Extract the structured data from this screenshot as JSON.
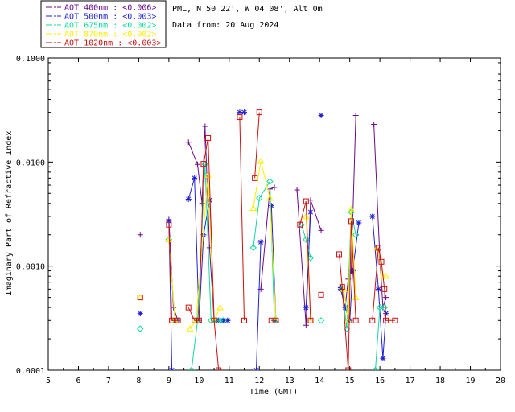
{
  "chart_data": {
    "type": "scatter",
    "header": {
      "site": "PML, N 50 22', W 04 08', Alt 0m",
      "date": "Data from: 20 Aug 2024"
    },
    "xlabel": "Time (GMT)",
    "ylabel": "Imaginary Part of Refractive Index",
    "xlim": [
      5,
      20
    ],
    "ylim": [
      0.0001,
      0.1
    ],
    "yscale": "log",
    "x_ticks": [
      5,
      6,
      7,
      8,
      9,
      10,
      11,
      12,
      13,
      14,
      15,
      16,
      17,
      18,
      19,
      20
    ],
    "y_ticks": [
      {
        "value": 0.0001,
        "label": "0.0001"
      },
      {
        "value": 0.001,
        "label": "0.0010"
      },
      {
        "value": 0.01,
        "label": "0.0100"
      },
      {
        "value": 0.1,
        "label": "0.1000"
      }
    ],
    "legend_position": "top-left-outside",
    "series": [
      {
        "name": "AOT  400nm : <0.006>",
        "color": "#6a0a8c",
        "marker": "plus",
        "segments": [
          [
            [
              8.05,
              0.002
            ]
          ],
          [
            [
              9.0,
              0.0028
            ],
            [
              9.15,
              0.0004
            ],
            [
              9.3,
              0.0003
            ]
          ],
          [
            [
              9.65,
              0.0155
            ],
            [
              9.95,
              0.0095
            ],
            [
              10.1,
              0.004
            ],
            [
              10.2,
              0.022
            ],
            [
              10.35,
              0.0015
            ],
            [
              10.5,
              0.0003
            ],
            [
              10.65,
              0.0003
            ],
            [
              10.8,
              0.0003
            ],
            [
              10.95,
              0.0003
            ]
          ],
          [
            [
              12.05,
              0.0006
            ],
            [
              12.35,
              0.0055
            ],
            [
              12.5,
              0.0057
            ]
          ],
          [
            [
              13.25,
              0.0054
            ],
            [
              13.55,
              0.00027
            ],
            [
              13.7,
              0.0043
            ],
            [
              14.05,
              0.0022
            ]
          ],
          [
            [
              14.7,
              0.00062
            ],
            [
              14.85,
              0.0004
            ],
            [
              14.95,
              0.00075
            ],
            [
              15.05,
              0.0009
            ],
            [
              15.2,
              0.028
            ]
          ],
          [
            [
              15.8,
              0.023
            ],
            [
              16.0,
              0.0012
            ],
            [
              16.1,
              0.0004
            ],
            [
              16.2,
              0.0005
            ]
          ]
        ]
      },
      {
        "name": "AOT  500nm : <0.003>",
        "color": "#1f1fd6",
        "marker": "star",
        "segments": [
          [
            [
              8.05,
              0.00035
            ]
          ],
          [
            [
              9.0,
              0.0027
            ],
            [
              9.1,
              0.0001
            ]
          ],
          [
            [
              9.65,
              0.0044
            ],
            [
              9.85,
              0.007
            ],
            [
              10.0,
              0.0003
            ],
            [
              10.15,
              0.002
            ],
            [
              10.35,
              0.0043
            ],
            [
              10.5,
              0.0003
            ],
            [
              10.65,
              0.0003
            ],
            [
              10.8,
              0.0003
            ],
            [
              10.95,
              0.0003
            ]
          ],
          [
            [
              11.35,
              0.03
            ],
            [
              11.5,
              0.03
            ]
          ],
          [
            [
              11.9,
              0.0001
            ],
            [
              12.05,
              0.0017
            ]
          ],
          [
            [
              12.4,
              0.0038
            ],
            [
              12.55,
              0.0003
            ]
          ],
          [
            [
              13.55,
              0.0004
            ],
            [
              13.7,
              0.0033
            ]
          ],
          [
            [
              14.05,
              0.028
            ]
          ],
          [
            [
              14.7,
              0.0006
            ],
            [
              14.85,
              0.0004
            ],
            [
              15.0,
              0.0003
            ],
            [
              15.1,
              0.0009
            ],
            [
              15.3,
              0.0026
            ]
          ],
          [
            [
              15.75,
              0.003
            ],
            [
              15.95,
              0.0006
            ],
            [
              16.1,
              0.00013
            ],
            [
              16.2,
              0.00035
            ]
          ]
        ]
      },
      {
        "name": "AOT  675nm : <0.002>",
        "color": "#10d8a0",
        "marker": "diamond",
        "segments": [
          [
            [
              8.05,
              0.00025
            ]
          ],
          [
            [
              9.0,
              0.0018
            ],
            [
              9.2,
              0.0003
            ]
          ],
          [
            [
              9.75,
              0.0001
            ],
            [
              9.95,
              0.0003
            ],
            [
              10.2,
              0.0095
            ],
            [
              10.4,
              0.0003
            ],
            [
              10.6,
              0.0003
            ],
            [
              10.8,
              0.0003
            ]
          ],
          [
            [
              11.8,
              0.0015
            ],
            [
              12.0,
              0.0045
            ],
            [
              12.35,
              0.0065
            ],
            [
              12.5,
              0.0003
            ]
          ],
          [
            [
              13.4,
              0.0025
            ],
            [
              13.55,
              0.0018
            ],
            [
              13.7,
              0.0012
            ]
          ],
          [
            [
              14.05,
              0.0003
            ]
          ],
          [
            [
              14.75,
              0.0006
            ],
            [
              14.9,
              0.00025
            ],
            [
              15.05,
              0.0033
            ],
            [
              15.2,
              0.002
            ]
          ],
          [
            [
              15.85,
              0.0001
            ],
            [
              16.0,
              0.0004
            ],
            [
              16.15,
              0.0004
            ]
          ]
        ]
      },
      {
        "name": "AOT  870nm : <0.002>",
        "color": "#ffee00",
        "marker": "triangle",
        "segments": [
          [
            [
              8.05,
              0.0005
            ]
          ],
          [
            [
              9.0,
              0.0018
            ],
            [
              9.2,
              0.0003
            ]
          ],
          [
            [
              9.7,
              0.00025
            ],
            [
              9.9,
              0.0003
            ],
            [
              10.3,
              0.0075
            ],
            [
              10.5,
              0.0003
            ],
            [
              10.7,
              0.0004
            ]
          ],
          [
            [
              11.8,
              0.0036
            ],
            [
              12.05,
              0.0102
            ],
            [
              12.35,
              0.0045
            ],
            [
              12.55,
              0.0003
            ]
          ],
          [
            [
              13.55,
              0.003
            ],
            [
              13.7,
              0.0003
            ]
          ],
          [
            [
              14.8,
              0.0006
            ],
            [
              14.95,
              0.0003
            ],
            [
              15.05,
              0.0035
            ],
            [
              15.2,
              0.0005
            ]
          ],
          [
            [
              15.9,
              0.0015
            ],
            [
              16.1,
              0.0008
            ],
            [
              16.2,
              0.0008
            ]
          ]
        ]
      },
      {
        "name": "AOT 1020nm : <0.003>",
        "color": "#cc1010",
        "marker": "square",
        "segments": [
          [
            [
              8.05,
              0.0005
            ]
          ],
          [
            [
              9.0,
              0.0025
            ],
            [
              9.1,
              0.0003
            ],
            [
              9.3,
              0.0003
            ]
          ],
          [
            [
              9.65,
              0.0004
            ],
            [
              9.85,
              0.0003
            ],
            [
              10.0,
              0.0003
            ],
            [
              10.15,
              0.0096
            ],
            [
              10.3,
              0.017
            ],
            [
              10.5,
              0.0003
            ],
            [
              10.65,
              0.0001
            ]
          ],
          [
            [
              11.35,
              0.027
            ],
            [
              11.5,
              0.0003
            ]
          ],
          [
            [
              11.85,
              0.007
            ],
            [
              12.0,
              0.03
            ]
          ],
          [
            [
              12.4,
              0.0003
            ],
            [
              12.55,
              0.0003
            ]
          ],
          [
            [
              13.35,
              0.0025
            ],
            [
              13.55,
              0.0042
            ],
            [
              13.7,
              0.0003
            ]
          ],
          [
            [
              14.05,
              0.00053
            ]
          ],
          [
            [
              14.65,
              0.0013
            ],
            [
              14.75,
              0.00063
            ],
            [
              14.95,
              0.0001
            ],
            [
              15.05,
              0.0027
            ],
            [
              15.2,
              0.0003
            ]
          ],
          [
            [
              15.75,
              0.0003
            ],
            [
              15.95,
              0.0015
            ],
            [
              16.05,
              0.0011
            ],
            [
              16.15,
              0.0006
            ],
            [
              16.2,
              0.0003
            ],
            [
              16.5,
              0.0003
            ]
          ]
        ]
      }
    ]
  }
}
